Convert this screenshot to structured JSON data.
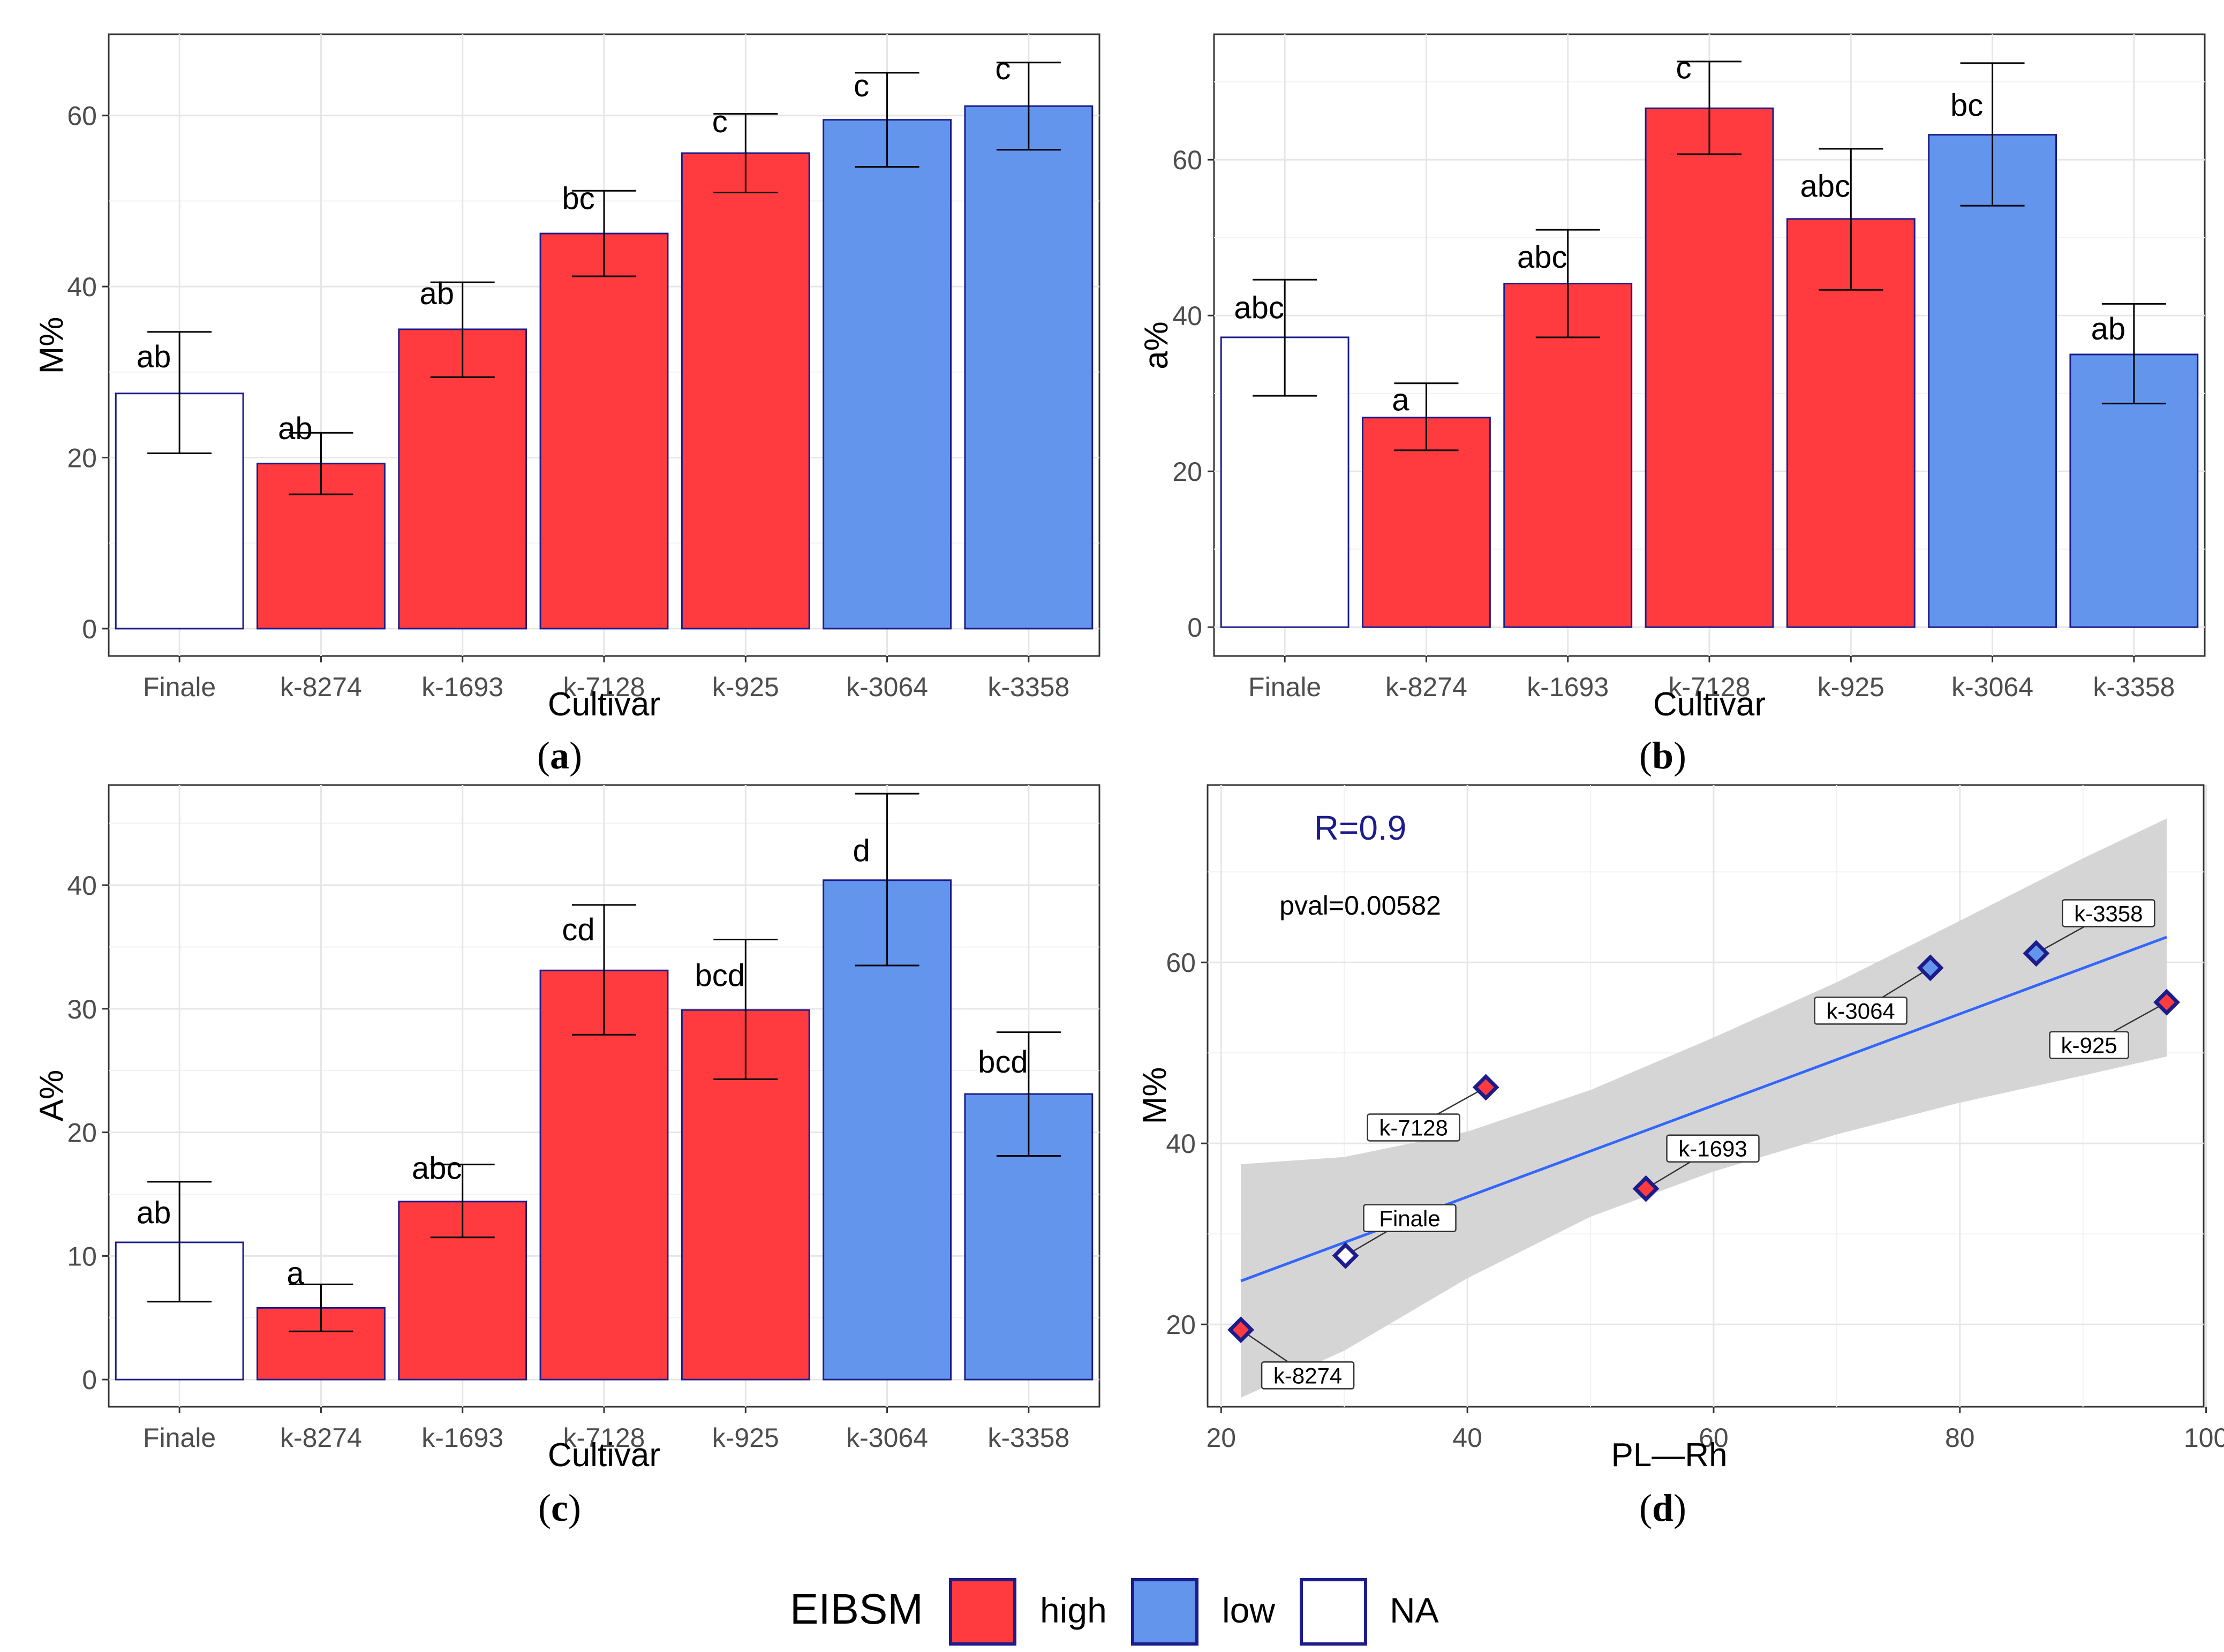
{
  "colors": {
    "high": "#ff3b3f",
    "low": "#6495ed",
    "na": "#ffffff",
    "border": "#1c1c8c",
    "fit_line": "#3366ff",
    "ribbon": "#d3d3d3",
    "r_text": "#1c1c8c"
  },
  "legend": {
    "title": "EIBSM",
    "items": [
      {
        "key": "high",
        "label": "high"
      },
      {
        "key": "low",
        "label": "low"
      },
      {
        "key": "na",
        "label": "NA"
      }
    ]
  },
  "captions": {
    "a": "a",
    "b": "b",
    "c": "c",
    "d": "d"
  },
  "chart_data": [
    {
      "id": "a",
      "type": "bar",
      "title": "",
      "xlabel": "Cultivar",
      "ylabel": "M%",
      "ylim": [
        -3.2,
        69.5
      ],
      "yticks": [
        0,
        20,
        40,
        60
      ],
      "categories": [
        "Finale",
        "k-8274",
        "k-1693",
        "k-7128",
        "k-925",
        "k-3064",
        "k-3358"
      ],
      "groups": [
        "na",
        "high",
        "high",
        "high",
        "high",
        "low",
        "low"
      ],
      "values": [
        27.5,
        19.3,
        35.0,
        46.2,
        55.6,
        59.5,
        61.1
      ],
      "err_low": [
        20.5,
        15.7,
        29.4,
        41.2,
        51.0,
        54.0,
        56.0
      ],
      "err_high": [
        34.7,
        22.9,
        40.5,
        51.2,
        60.2,
        65.0,
        66.2
      ],
      "letters": [
        "ab",
        "ab",
        "ab",
        "bc",
        "c",
        "c",
        "c"
      ],
      "letter_y": [
        31.8,
        23.4,
        39.2,
        50.3,
        59.3,
        63.5,
        65.5
      ]
    },
    {
      "id": "b",
      "type": "bar",
      "title": "",
      "xlabel": "Cultivar",
      "ylabel": "a%",
      "ylim": [
        -3.7,
        76.1
      ],
      "yticks": [
        0,
        20,
        40,
        60
      ],
      "categories": [
        "Finale",
        "k-8274",
        "k-1693",
        "k-7128",
        "k-925",
        "k-3064",
        "k-3358"
      ],
      "groups": [
        "na",
        "high",
        "high",
        "high",
        "high",
        "low",
        "low"
      ],
      "values": [
        37.2,
        26.9,
        44.1,
        66.6,
        52.4,
        63.2,
        35.0
      ],
      "err_low": [
        29.7,
        22.7,
        37.2,
        60.7,
        43.3,
        54.1,
        28.7
      ],
      "err_high": [
        44.6,
        31.3,
        51.0,
        72.6,
        61.4,
        72.4,
        41.5
      ],
      "letters": [
        "abc",
        "a",
        "abc",
        "c",
        "abc",
        "bc",
        "ab"
      ],
      "letter_y": [
        41.0,
        29.2,
        47.5,
        71.8,
        56.6,
        67.0,
        38.3
      ]
    },
    {
      "id": "c",
      "type": "bar",
      "title": "",
      "xlabel": "Cultivar",
      "ylabel": "A%",
      "ylim": [
        -2.2,
        48.1
      ],
      "yticks": [
        0,
        10,
        20,
        30,
        40
      ],
      "categories": [
        "Finale",
        "k-8274",
        "k-1693",
        "k-7128",
        "k-925",
        "k-3064",
        "k-3358"
      ],
      "groups": [
        "na",
        "high",
        "high",
        "high",
        "high",
        "low",
        "low"
      ],
      "values": [
        11.1,
        5.8,
        14.4,
        33.1,
        29.9,
        40.4,
        23.1
      ],
      "err_low": [
        6.3,
        3.9,
        11.5,
        27.9,
        24.3,
        33.5,
        18.1
      ],
      "err_high": [
        16.0,
        7.7,
        17.4,
        38.4,
        35.6,
        47.4,
        28.1
      ],
      "letters": [
        "ab",
        "a",
        "abc",
        "cd",
        "bcd",
        "d",
        "bcd"
      ],
      "letter_y": [
        13.5,
        8.6,
        17.1,
        36.4,
        32.7,
        42.8,
        25.7
      ]
    },
    {
      "id": "d",
      "type": "scatter",
      "title": "",
      "xlabel": "PL—Rh",
      "ylabel": "M%",
      "xlim": [
        18.9,
        99.8
      ],
      "ylim": [
        10.9,
        79.6
      ],
      "xticks": [
        20,
        40,
        60,
        80,
        100
      ],
      "yticks": [
        20,
        40,
        60
      ],
      "annotations": {
        "r": "R=0.9",
        "pval": "pval=0.00582"
      },
      "points": [
        {
          "label": "Finale",
          "x": 30.1,
          "y": 27.6,
          "group": "na"
        },
        {
          "label": "k-8274",
          "x": 21.6,
          "y": 19.4,
          "group": "high"
        },
        {
          "label": "k-1693",
          "x": 54.5,
          "y": 35.0,
          "group": "high"
        },
        {
          "label": "k-7128",
          "x": 41.5,
          "y": 46.2,
          "group": "high"
        },
        {
          "label": "k-925",
          "x": 96.8,
          "y": 55.6,
          "group": "high"
        },
        {
          "label": "k-3064",
          "x": 77.6,
          "y": 59.4,
          "group": "low"
        },
        {
          "label": "k-3358",
          "x": 86.2,
          "y": 61.0,
          "group": "low"
        }
      ],
      "fit": {
        "x": [
          21.6,
          96.8
        ],
        "y": [
          24.8,
          62.8
        ]
      },
      "ribbon": {
        "x": [
          21.6,
          30.0,
          40.0,
          50.0,
          60.0,
          70.0,
          80.0,
          90.0,
          96.8
        ],
        "upper": [
          37.7,
          38.5,
          41.3,
          45.9,
          51.7,
          57.8,
          64.6,
          71.5,
          75.9
        ],
        "lower": [
          11.9,
          17.1,
          25.1,
          31.9,
          36.9,
          41.0,
          44.5,
          47.5,
          49.6
        ]
      }
    }
  ]
}
